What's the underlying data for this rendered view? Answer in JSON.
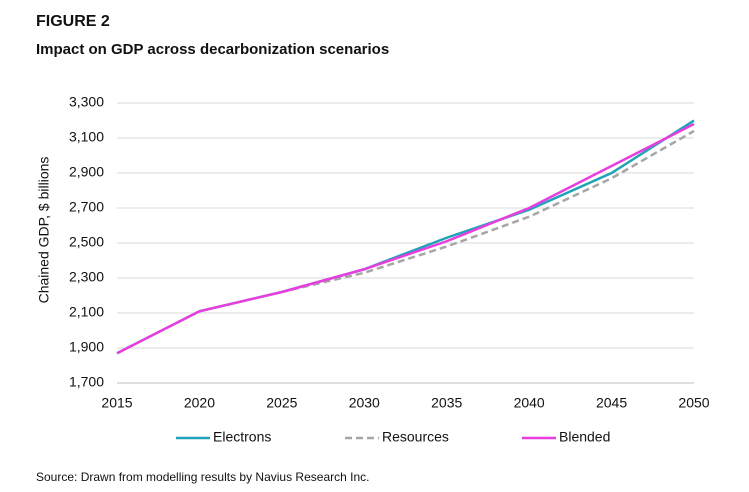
{
  "figure_label": "FIGURE 2",
  "source": "Source: Drawn from modelling results by Navius Research Inc.",
  "chart_data": {
    "type": "line",
    "title": "Impact on GDP across decarbonization scenarios",
    "y_label": "Chained GDP, $ billions",
    "x": [
      2015,
      2020,
      2025,
      2030,
      2035,
      2040,
      2045,
      2050
    ],
    "xlim": [
      2015,
      2050
    ],
    "xticks": [
      2015,
      2020,
      2025,
      2030,
      2035,
      2040,
      2045,
      2050
    ],
    "ylim": [
      1700,
      3300
    ],
    "yticks": [
      {
        "value": 1700,
        "label": "1,700"
      },
      {
        "value": 1900,
        "label": "1,900"
      },
      {
        "value": 2100,
        "label": "2,100"
      },
      {
        "value": 2300,
        "label": "2,300"
      },
      {
        "value": 2500,
        "label": "2,500"
      },
      {
        "value": 2700,
        "label": "2,700"
      },
      {
        "value": 2900,
        "label": "2,900"
      },
      {
        "value": 3100,
        "label": "3,100"
      },
      {
        "value": 3300,
        "label": "3,300"
      }
    ],
    "grid": true,
    "legend_position": "bottom",
    "series": [
      {
        "name": "Electrons",
        "color": "#1fa3b8",
        "style": "solid",
        "values": [
          1870,
          2110,
          2220,
          2350,
          2530,
          2690,
          2900,
          3200
        ]
      },
      {
        "name": "Resources",
        "color": "#a6a6a6",
        "style": "dashed",
        "values": [
          1870,
          2110,
          2220,
          2330,
          2480,
          2650,
          2870,
          3140
        ]
      },
      {
        "name": "Blended",
        "color": "#e83ee0",
        "style": "solid",
        "values": [
          1870,
          2110,
          2220,
          2350,
          2510,
          2700,
          2940,
          3180
        ]
      }
    ]
  }
}
